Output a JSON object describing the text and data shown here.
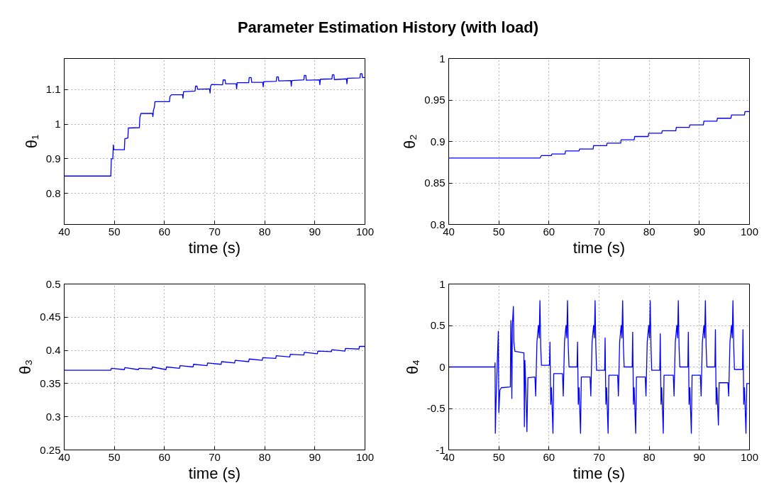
{
  "chart_data": [
    {
      "type": "line",
      "title": "Parameter Estimation History (with load)",
      "xlabel": "time (s)",
      "ylabel": "θ₁",
      "xlim": [
        40,
        100
      ],
      "ylim": [
        0.71,
        1.19
      ],
      "xticks": [
        40,
        50,
        60,
        70,
        80,
        90,
        100
      ],
      "yticks": [
        0.8,
        0.9,
        1,
        1.1
      ],
      "grid": true,
      "series": [
        {
          "color": "#0000ff",
          "x": [
            40,
            49.3,
            49.4,
            49.7,
            49.8,
            49.9,
            52,
            52.1,
            52.7,
            52.8,
            55,
            55.1,
            55.3,
            57.6,
            57.7,
            57.8,
            58.0,
            58.1,
            61,
            61.1,
            61.4,
            63.6,
            63.7,
            63.8,
            66.1,
            66.2,
            66.5,
            66.6,
            69,
            69.1,
            69.2,
            69.4,
            71.6,
            71.7,
            72.1,
            72.2,
            74.3,
            74.4,
            74.5,
            76.8,
            76.9,
            77.3,
            77.4,
            79.6,
            79.7,
            79.8,
            82.3,
            82.4,
            82.7,
            82.8,
            85.2,
            85.3,
            85.4,
            87.8,
            87.9,
            88.2,
            88.3,
            90.9,
            91.0,
            91.1,
            93.4,
            93.5,
            93.8,
            93.9,
            96.3,
            96.4,
            96.5,
            99,
            99.1,
            99.4,
            99.5,
            100
          ],
          "values": [
            0.85,
            0.85,
            0.9,
            0.9,
            0.94,
            0.926,
            0.926,
            0.958,
            0.96,
            0.989,
            0.99,
            1.02,
            1.031,
            1.031,
            1.022,
            1.04,
            1.05,
            1.065,
            1.065,
            1.08,
            1.085,
            1.085,
            1.075,
            1.094,
            1.096,
            1.11,
            1.11,
            1.101,
            1.102,
            1.09,
            1.11,
            1.115,
            1.114,
            1.128,
            1.128,
            1.117,
            1.117,
            1.102,
            1.12,
            1.12,
            1.135,
            1.135,
            1.121,
            1.121,
            1.108,
            1.123,
            1.124,
            1.137,
            1.137,
            1.125,
            1.126,
            1.11,
            1.126,
            1.128,
            1.141,
            1.141,
            1.127,
            1.128,
            1.114,
            1.13,
            1.131,
            1.143,
            1.143,
            1.129,
            1.131,
            1.117,
            1.133,
            1.134,
            1.146,
            1.146,
            1.135,
            1.135
          ]
        }
      ]
    },
    {
      "type": "line",
      "xlabel": "time (s)",
      "ylabel": "θ₂",
      "xlim": [
        40,
        100
      ],
      "ylim": [
        0.8,
        1
      ],
      "xticks": [
        40,
        50,
        60,
        70,
        80,
        90,
        100
      ],
      "yticks": [
        0.8,
        0.85,
        0.9,
        0.95,
        1
      ],
      "grid": true,
      "series": [
        {
          "color": "#0000ff",
          "x": [
            40,
            58.2,
            58.3,
            58.5,
            60.5,
            60.6,
            63.2,
            63.3,
            66,
            66.1,
            68.8,
            68.9,
            71.5,
            71.6,
            74.3,
            74.4,
            77,
            77.1,
            79.8,
            79.9,
            82.5,
            82.6,
            85.3,
            85.4,
            88,
            88.1,
            90.8,
            90.9,
            93.5,
            93.6,
            96.3,
            96.4,
            99,
            99.1,
            100
          ],
          "values": [
            0.88,
            0.88,
            0.881,
            0.883,
            0.883,
            0.885,
            0.885,
            0.8885,
            0.8885,
            0.891,
            0.891,
            0.895,
            0.895,
            0.898,
            0.898,
            0.902,
            0.902,
            0.906,
            0.906,
            0.91,
            0.91,
            0.913,
            0.913,
            0.917,
            0.917,
            0.92,
            0.92,
            0.9245,
            0.9245,
            0.928,
            0.928,
            0.932,
            0.932,
            0.936,
            0.936
          ]
        }
      ]
    },
    {
      "type": "line",
      "xlabel": "time (s)",
      "ylabel": "θ₃",
      "xlim": [
        40,
        100
      ],
      "ylim": [
        0.25,
        0.5
      ],
      "xticks": [
        40,
        50,
        60,
        70,
        80,
        90,
        100
      ],
      "yticks": [
        0.25,
        0.3,
        0.35,
        0.4,
        0.45,
        0.5
      ],
      "grid": true,
      "series": [
        {
          "color": "#0000ff",
          "x": [
            40,
            49.3,
            49.4,
            52,
            52.1,
            54.8,
            54.9,
            57.5,
            57.6,
            60.3,
            60.4,
            63,
            63.1,
            65.7,
            65.8,
            68.5,
            68.6,
            71.3,
            71.4,
            74,
            74.1,
            76.8,
            76.9,
            79.5,
            79.6,
            82.2,
            82.3,
            85,
            85.1,
            87.8,
            87.9,
            90.5,
            90.6,
            93.3,
            93.4,
            96,
            96.1,
            98.8,
            98.9,
            100
          ],
          "values": [
            0.37,
            0.37,
            0.373,
            0.371,
            0.374,
            0.371,
            0.373,
            0.372,
            0.375,
            0.371,
            0.375,
            0.373,
            0.377,
            0.375,
            0.379,
            0.377,
            0.381,
            0.379,
            0.383,
            0.381,
            0.385,
            0.383,
            0.387,
            0.385,
            0.389,
            0.388,
            0.392,
            0.39,
            0.394,
            0.393,
            0.397,
            0.395,
            0.399,
            0.398,
            0.401,
            0.399,
            0.403,
            0.402,
            0.406,
            0.406
          ]
        }
      ]
    },
    {
      "type": "line",
      "xlabel": "time (s)",
      "ylabel": "θ₄",
      "xlim": [
        40,
        100
      ],
      "ylim": [
        -1,
        1
      ],
      "xticks": [
        40,
        50,
        60,
        70,
        80,
        90,
        100
      ],
      "yticks": [
        -1,
        -0.5,
        0,
        0.5,
        1
      ],
      "grid": true,
      "series": [
        {
          "color": "#0000ff",
          "x": [
            40,
            49.2,
            49.25,
            49.3,
            49.5,
            49.9,
            50.0,
            50.2,
            50.5,
            52.3,
            52.4,
            52.5,
            52.6,
            52.7,
            52.9,
            53.0,
            53.2,
            55.0,
            55.1,
            55.2,
            55.4,
            55.6,
            55.8,
            57.2,
            57.35,
            57.6,
            57.9,
            58.05,
            58.2,
            58.35,
            58.5,
            60.1,
            60.2,
            60.35,
            60.5,
            60.8,
            60.95,
            62.7,
            62.85,
            63.1,
            63.4,
            63.55,
            63.7,
            63.85,
            64.0,
            65.6,
            65.7,
            65.85,
            66.0,
            66.3,
            66.45,
            68.2,
            68.35,
            68.6,
            68.9,
            69.05,
            69.2,
            69.35,
            69.5,
            71.1,
            71.2,
            71.35,
            71.5,
            71.8,
            71.95,
            73.7,
            73.85,
            74.1,
            74.4,
            74.55,
            74.7,
            74.85,
            75.0,
            76.6,
            76.7,
            76.85,
            77.0,
            77.3,
            77.45,
            79.2,
            79.35,
            79.6,
            79.9,
            80.05,
            80.2,
            80.35,
            80.5,
            82.1,
            82.2,
            82.35,
            82.5,
            82.8,
            82.95,
            84.8,
            84.95,
            85.2,
            85.5,
            85.65,
            85.8,
            85.95,
            86.1,
            87.7,
            87.8,
            87.95,
            88.1,
            88.4,
            88.55,
            90.2,
            90.35,
            90.6,
            90.9,
            91.05,
            91.2,
            91.35,
            91.5,
            93.1,
            93.2,
            93.35,
            93.5,
            93.8,
            93.95,
            95.7,
            95.85,
            96.1,
            96.4,
            96.55,
            96.7,
            96.85,
            97.0,
            98.6,
            98.7,
            98.85,
            99.0,
            99.3,
            99.45,
            100
          ],
          "values": [
            0,
            0,
            0.05,
            -0.8,
            -0.3,
            0.43,
            -0.55,
            -0.28,
            -0.25,
            -0.24,
            0.56,
            0.25,
            -0.38,
            0.5,
            0.73,
            0.3,
            0.19,
            0.17,
            -0.72,
            0.08,
            -0.3,
            -0.78,
            -0.13,
            -0.12,
            -0.35,
            0.3,
            0.5,
            0.35,
            0.8,
            0.25,
            0.02,
            0.02,
            0.3,
            -0.45,
            -0.25,
            -0.8,
            -0.08,
            -0.08,
            -0.35,
            0.3,
            0.5,
            0.35,
            0.8,
            0.25,
            0,
            0,
            0.3,
            -0.45,
            -0.25,
            -0.8,
            -0.12,
            -0.12,
            -0.35,
            0.3,
            0.5,
            0.35,
            0.8,
            0.25,
            -0.04,
            -0.04,
            0.35,
            -0.45,
            -0.25,
            -0.8,
            -0.1,
            -0.1,
            -0.35,
            0.3,
            0.5,
            0.35,
            0.8,
            0.25,
            0,
            0,
            0.42,
            -0.45,
            -0.25,
            -0.8,
            -0.12,
            -0.12,
            -0.35,
            0.3,
            0.5,
            0.35,
            0.8,
            0.25,
            -0.04,
            -0.04,
            0.4,
            -0.45,
            -0.25,
            -0.8,
            -0.1,
            -0.1,
            -0.35,
            0.3,
            0.5,
            0.35,
            0.8,
            0.25,
            0,
            0,
            0.42,
            -0.45,
            -0.25,
            -0.8,
            -0.1,
            -0.1,
            -0.35,
            0.3,
            0.5,
            0.35,
            0.8,
            0.25,
            0,
            0,
            0.45,
            -0.45,
            -0.25,
            -0.7,
            -0.19,
            -0.19,
            -0.35,
            0.3,
            0.5,
            0.35,
            0.8,
            0.25,
            -0.03,
            -0.03,
            0.45,
            -0.45,
            -0.25,
            -0.8,
            -0.2,
            -0.2
          ]
        }
      ]
    }
  ]
}
